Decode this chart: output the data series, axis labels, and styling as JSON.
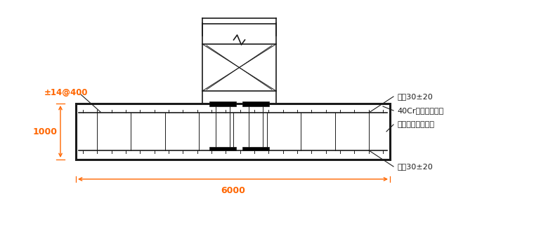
{
  "bg_color": "#ffffff",
  "line_color": "#1a1a1a",
  "dim_color": "#ff6600",
  "text_color": "#1a1a1a",
  "fig_width": 7.6,
  "fig_height": 3.23,
  "labels": {
    "rebar_top": "双啠30±20",
    "bolt": "40Cr塔吊专用螺栓",
    "plate": "塔吊专用定位钉板",
    "rebar_bottom": "双啠30±20",
    "dim_height": "1000",
    "dim_width": "6000",
    "rebar_label": "±14@400"
  }
}
